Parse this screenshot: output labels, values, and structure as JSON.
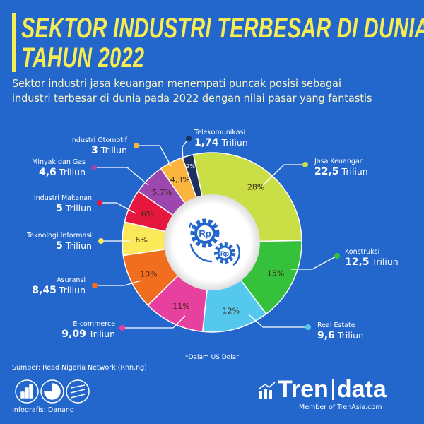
{
  "header": {
    "title_line1": "SEKTOR INDUSTRI TERBESAR DI DUNIA",
    "title_line2": "TAHUN 2022",
    "subtitle_line1": "Sektor industri jasa keuangan menempati puncak posisi sebagai",
    "subtitle_line2": "industri terbesar di dunia pada 2022 dengan nilai pasar yang fantastis"
  },
  "chart_data": {
    "type": "pie",
    "variant": "donut",
    "unit_note": "*Dalam US Dolar",
    "center_icon": "gears-rupiah-icon",
    "center_icon_text": "Rp",
    "slices": [
      {
        "name": "Jasa Keuangan",
        "percent": 28,
        "percent_label": "28%",
        "amount": "22,5",
        "unit": "Triliun",
        "color": "#c9df45"
      },
      {
        "name": "Konstruksi",
        "percent": 15,
        "percent_label": "15%",
        "amount": "12,5",
        "unit": "Triliun",
        "color": "#35c13b"
      },
      {
        "name": "Real Estate",
        "percent": 12,
        "percent_label": "12%",
        "amount": "9,6",
        "unit": "Triliun",
        "color": "#55c8ee"
      },
      {
        "name": "E-commerce",
        "percent": 11,
        "percent_label": "11%",
        "amount": "9,09",
        "unit": "Triliun",
        "color": "#e8409e"
      },
      {
        "name": "Asuransi",
        "percent": 10,
        "percent_label": "10%",
        "amount": "8,45",
        "unit": "Triliun",
        "color": "#f06e1e"
      },
      {
        "name": "Teknologi Informasi",
        "percent": 6,
        "percent_label": "6%",
        "amount": "5",
        "unit": "Triliun",
        "color": "#fbe95a"
      },
      {
        "name": "Industri Makanan",
        "percent": 6,
        "percent_label": "6%",
        "amount": "5",
        "unit": "Triliun",
        "color": "#e5173f"
      },
      {
        "name": "Minyak dan Gas",
        "percent": 5.7,
        "percent_label": "5,7%",
        "amount": "4,6",
        "unit": "Triliun",
        "color": "#9b47ad"
      },
      {
        "name": "Industri Otomotif",
        "percent": 4.3,
        "percent_label": "4,3%",
        "amount": "3",
        "unit": "Triliun",
        "color": "#fbb43e"
      },
      {
        "name": "Telekomunikasi",
        "percent": 2,
        "percent_label": "2%",
        "amount": "1,74",
        "unit": "Triliun",
        "color": "#1b3160"
      }
    ]
  },
  "footer": {
    "source": "Sumber: Read Nigeria Network (Rnn.ng)",
    "credit": "Infografis: Danang",
    "icons": [
      "bar-chart-icon",
      "pie-chart-icon",
      "line-chart-icon"
    ],
    "brand_left": "Tren",
    "brand_right": "data",
    "brand_sub": "Member of TrenAsia.com"
  },
  "colors": {
    "background": "#2366cc",
    "title": "#f7ec52"
  }
}
